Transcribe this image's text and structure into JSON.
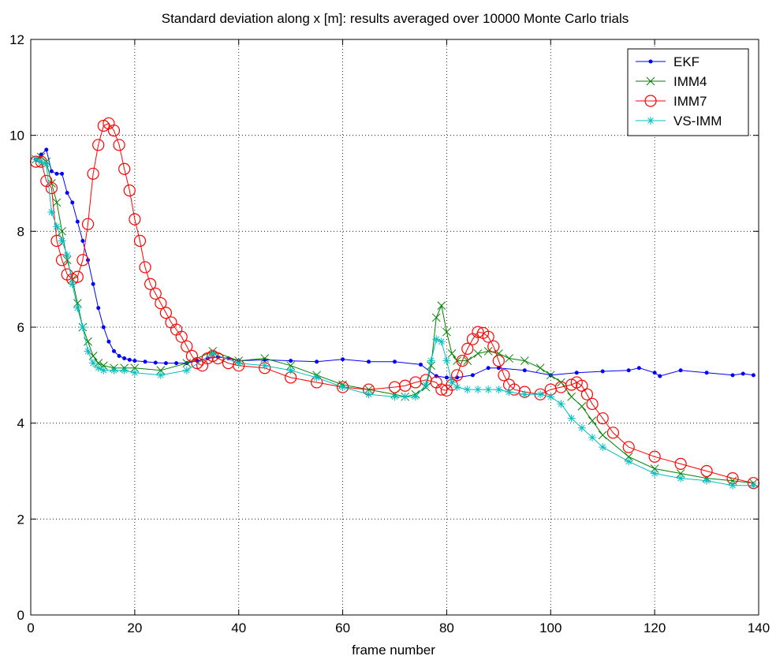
{
  "chart_data": {
    "type": "line",
    "title": "Standard deviation along x [m]: results averaged over 10000 Monte Carlo trials",
    "xlabel": "frame number",
    "ylabel": "",
    "xlim": [
      0,
      140
    ],
    "ylim": [
      0,
      12
    ],
    "xticks": [
      0,
      20,
      40,
      60,
      80,
      100,
      120,
      140
    ],
    "yticks": [
      0,
      2,
      4,
      6,
      8,
      10,
      12
    ],
    "grid": true,
    "legend_position": "top-right",
    "series": [
      {
        "name": "EKF",
        "color": "#0000ff",
        "marker": "dot",
        "x": [
          1,
          2,
          3,
          4,
          5,
          6,
          7,
          8,
          9,
          10,
          11,
          12,
          13,
          14,
          15,
          16,
          17,
          18,
          19,
          20,
          22,
          24,
          26,
          28,
          30,
          32,
          34,
          36,
          38,
          40,
          45,
          50,
          55,
          60,
          65,
          70,
          75,
          78,
          80,
          82,
          85,
          88,
          90,
          95,
          100,
          105,
          110,
          115,
          117,
          120,
          121,
          125,
          130,
          135,
          137,
          139
        ],
        "values": [
          9.5,
          9.6,
          9.7,
          9.25,
          9.2,
          9.2,
          8.8,
          8.6,
          8.2,
          7.8,
          7.4,
          6.9,
          6.4,
          6.0,
          5.7,
          5.5,
          5.4,
          5.35,
          5.32,
          5.3,
          5.28,
          5.26,
          5.25,
          5.25,
          5.25,
          5.3,
          5.35,
          5.38,
          5.35,
          5.3,
          5.32,
          5.3,
          5.28,
          5.33,
          5.28,
          5.28,
          5.22,
          4.98,
          4.95,
          4.95,
          5.0,
          5.15,
          5.15,
          5.1,
          5.0,
          5.05,
          5.08,
          5.1,
          5.15,
          5.05,
          4.98,
          5.1,
          5.05,
          5.0,
          5.03,
          5.0
        ]
      },
      {
        "name": "IMM4",
        "color": "#008000",
        "marker": "x",
        "x": [
          1,
          2,
          3,
          4,
          5,
          6,
          7,
          8,
          9,
          10,
          11,
          12,
          13,
          14,
          16,
          18,
          20,
          25,
          30,
          35,
          40,
          45,
          50,
          55,
          60,
          65,
          70,
          72,
          74,
          76,
          77,
          78,
          79,
          80,
          81,
          82,
          84,
          86,
          88,
          90,
          92,
          95,
          98,
          100,
          102,
          104,
          106,
          108,
          110,
          115,
          120,
          125,
          130,
          135,
          139
        ],
        "values": [
          9.5,
          9.55,
          9.45,
          9.0,
          8.6,
          8.0,
          7.4,
          7.0,
          6.5,
          6.0,
          5.7,
          5.4,
          5.25,
          5.2,
          5.15,
          5.15,
          5.15,
          5.1,
          5.25,
          5.5,
          5.3,
          5.35,
          5.2,
          5.0,
          4.8,
          4.7,
          4.6,
          4.55,
          4.6,
          4.75,
          5.2,
          6.2,
          6.45,
          5.9,
          5.45,
          5.3,
          5.3,
          5.45,
          5.5,
          5.45,
          5.35,
          5.3,
          5.15,
          5.0,
          4.85,
          4.55,
          4.35,
          4.05,
          3.75,
          3.3,
          3.05,
          2.95,
          2.85,
          2.8,
          2.75
        ]
      },
      {
        "name": "IMM7",
        "color": "#ff0000",
        "marker": "o",
        "x": [
          1,
          2,
          3,
          4,
          5,
          6,
          7,
          8,
          9,
          10,
          11,
          12,
          13,
          14,
          15,
          16,
          17,
          18,
          19,
          20,
          21,
          22,
          23,
          24,
          25,
          26,
          27,
          28,
          29,
          30,
          31,
          32,
          33,
          34,
          35,
          36,
          38,
          40,
          45,
          50,
          55,
          60,
          65,
          70,
          72,
          74,
          76,
          78,
          79,
          80,
          81,
          82,
          83,
          84,
          85,
          86,
          87,
          88,
          89,
          90,
          91,
          92,
          93,
          95,
          98,
          100,
          102,
          104,
          105,
          106,
          107,
          108,
          110,
          112,
          115,
          120,
          125,
          130,
          135,
          139
        ],
        "values": [
          9.45,
          9.45,
          9.05,
          8.9,
          7.8,
          7.4,
          7.1,
          7.0,
          7.05,
          7.4,
          8.15,
          9.2,
          9.8,
          10.2,
          10.25,
          10.1,
          9.8,
          9.3,
          8.85,
          8.25,
          7.8,
          7.25,
          6.9,
          6.7,
          6.5,
          6.3,
          6.1,
          5.95,
          5.8,
          5.6,
          5.4,
          5.25,
          5.2,
          5.35,
          5.4,
          5.35,
          5.25,
          5.2,
          5.15,
          4.95,
          4.85,
          4.75,
          4.7,
          4.75,
          4.78,
          4.85,
          4.9,
          4.85,
          4.7,
          4.68,
          4.8,
          5.0,
          5.3,
          5.55,
          5.75,
          5.9,
          5.88,
          5.8,
          5.6,
          5.3,
          5.0,
          4.8,
          4.7,
          4.65,
          4.6,
          4.7,
          4.75,
          4.8,
          4.85,
          4.78,
          4.6,
          4.4,
          4.1,
          3.8,
          3.5,
          3.3,
          3.15,
          3.0,
          2.85,
          2.75
        ]
      },
      {
        "name": "VS-IMM",
        "color": "#00bfbf",
        "marker": "star",
        "x": [
          1,
          2,
          3,
          4,
          5,
          6,
          7,
          8,
          9,
          10,
          11,
          12,
          13,
          14,
          16,
          18,
          20,
          25,
          30,
          35,
          40,
          45,
          50,
          55,
          60,
          65,
          70,
          72,
          74,
          76,
          77,
          78,
          79,
          80,
          81,
          82,
          84,
          86,
          88,
          90,
          92,
          95,
          98,
          100,
          102,
          104,
          106,
          108,
          110,
          115,
          120,
          125,
          130,
          135,
          139
        ],
        "values": [
          9.5,
          9.45,
          9.4,
          8.4,
          8.1,
          7.8,
          7.5,
          6.9,
          6.4,
          6.0,
          5.5,
          5.25,
          5.15,
          5.1,
          5.1,
          5.1,
          5.05,
          5.0,
          5.1,
          5.45,
          5.25,
          5.2,
          5.1,
          4.95,
          4.75,
          4.6,
          4.55,
          4.55,
          4.55,
          4.8,
          5.3,
          5.75,
          5.7,
          5.3,
          4.85,
          4.75,
          4.7,
          4.7,
          4.7,
          4.7,
          4.65,
          4.6,
          4.6,
          4.55,
          4.4,
          4.1,
          3.9,
          3.7,
          3.5,
          3.2,
          2.95,
          2.85,
          2.8,
          2.7,
          2.7
        ]
      }
    ]
  }
}
